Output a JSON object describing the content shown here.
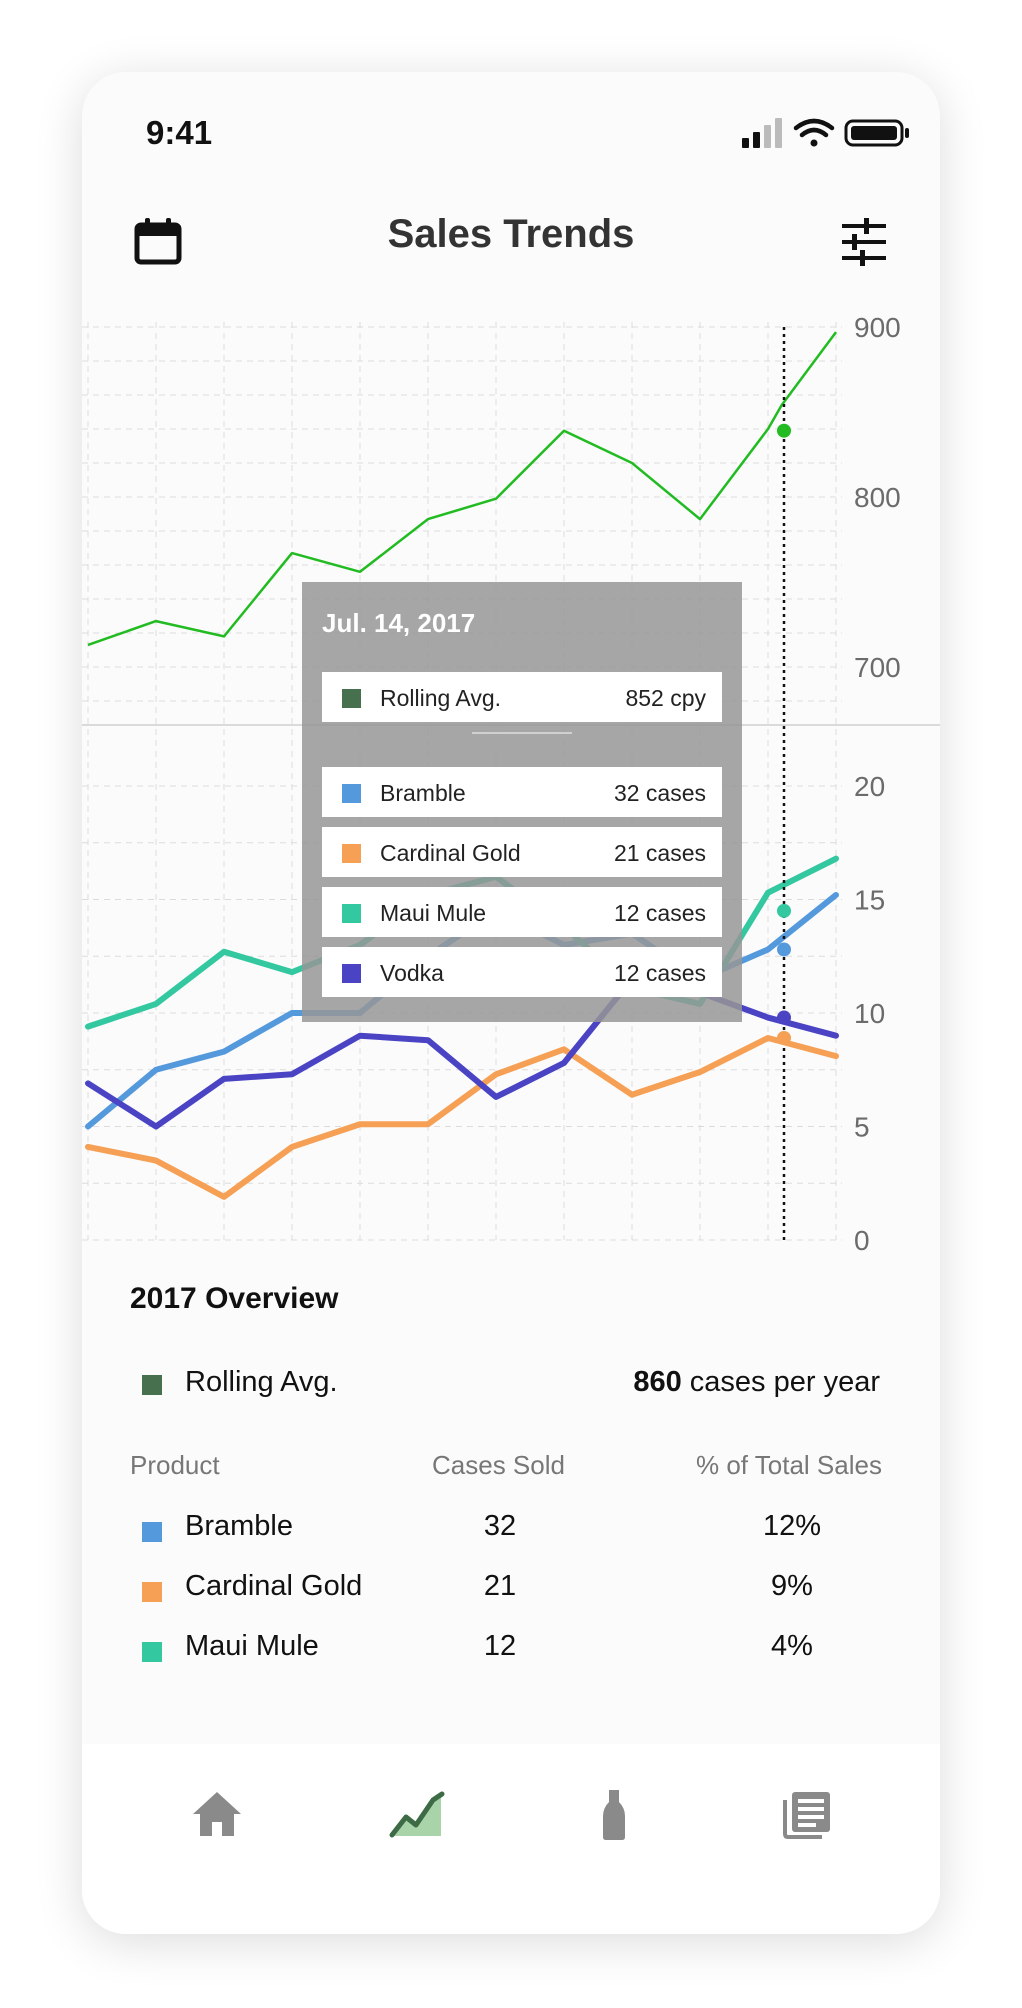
{
  "status_bar": {
    "time": "9:41"
  },
  "header": {
    "title": "Sales Trends",
    "left_icon": "calendar-icon",
    "right_icon": "sliders-icon"
  },
  "chart_data": [
    {
      "type": "line",
      "title": "",
      "ylim": [
        680,
        900
      ],
      "yticks": [
        "900",
        "800",
        "700"
      ],
      "grid": true,
      "series": [
        {
          "name": "Rolling Avg.",
          "color": "#22bb22",
          "values": [
            713,
            727,
            718,
            767,
            756,
            787,
            799,
            839,
            820,
            787,
            840,
            854,
            897
          ]
        }
      ]
    },
    {
      "type": "line",
      "title": "",
      "ylim": [
        0,
        20
      ],
      "yticks": [
        "20",
        "15",
        "10",
        "5",
        "0"
      ],
      "grid": true,
      "x_count": 12,
      "highlight_index": 10.5,
      "series": [
        {
          "name": "Bramble",
          "color": "#5599dd",
          "values": [
            5.0,
            7.5,
            8.3,
            10.0,
            10.0,
            12.5,
            14.5,
            13.0,
            13.5,
            11.5,
            12.8,
            15.2
          ]
        },
        {
          "name": "Cardinal Gold",
          "color": "#f5a055",
          "values": [
            4.1,
            3.5,
            1.9,
            4.1,
            5.1,
            5.1,
            7.3,
            8.4,
            6.4,
            7.4,
            8.9,
            8.1
          ]
        },
        {
          "name": "Maui Mule",
          "color": "#33c8a0",
          "values": [
            9.4,
            10.4,
            12.7,
            11.8,
            13.0,
            15.2,
            16.0,
            13.8,
            11.1,
            10.4,
            15.3,
            16.8
          ]
        },
        {
          "name": "Vodka",
          "color": "#4a44c4",
          "values": [
            6.9,
            5.0,
            7.1,
            7.3,
            9.0,
            8.8,
            6.3,
            7.8,
            11.5,
            10.9,
            9.8,
            9.0
          ]
        }
      ]
    }
  ],
  "tooltip": {
    "date": "Jul. 14, 2017",
    "rolling": {
      "label": "Rolling Avg.",
      "value": "852 cpy",
      "color": "#47704f"
    },
    "rows": [
      {
        "label": "Bramble",
        "value": "32 cases",
        "color": "#5599dd"
      },
      {
        "label": "Cardinal Gold",
        "value": "21 cases",
        "color": "#f5a055"
      },
      {
        "label": "Maui Mule",
        "value": "12 cases",
        "color": "#33c8a0"
      },
      {
        "label": "Vodka",
        "value": "12 cases",
        "color": "#4a44c4"
      }
    ]
  },
  "overview": {
    "title": "2017 Overview",
    "rolling_label": "Rolling Avg.",
    "rolling_value": "860",
    "rolling_unit": "cases per year",
    "rolling_color": "#47704f",
    "headers": {
      "product": "Product",
      "cases": "Cases Sold",
      "pct": "% of Total Sales"
    },
    "rows": [
      {
        "product": "Bramble",
        "cases": "32",
        "pct": "12%",
        "color": "#5599dd"
      },
      {
        "product": "Cardinal Gold",
        "cases": "21",
        "pct": "9%",
        "color": "#f5a055"
      },
      {
        "product": "Maui Mule",
        "cases": "12",
        "pct": "4%",
        "color": "#33c8a0"
      }
    ]
  },
  "bottom_nav": {
    "items": [
      {
        "icon": "home-icon",
        "active": false
      },
      {
        "icon": "trends-icon",
        "active": true
      },
      {
        "icon": "bottle-icon",
        "active": false
      },
      {
        "icon": "news-icon",
        "active": false
      }
    ],
    "active_color": "#3d6b45",
    "inactive_color": "#8a8a8a"
  }
}
